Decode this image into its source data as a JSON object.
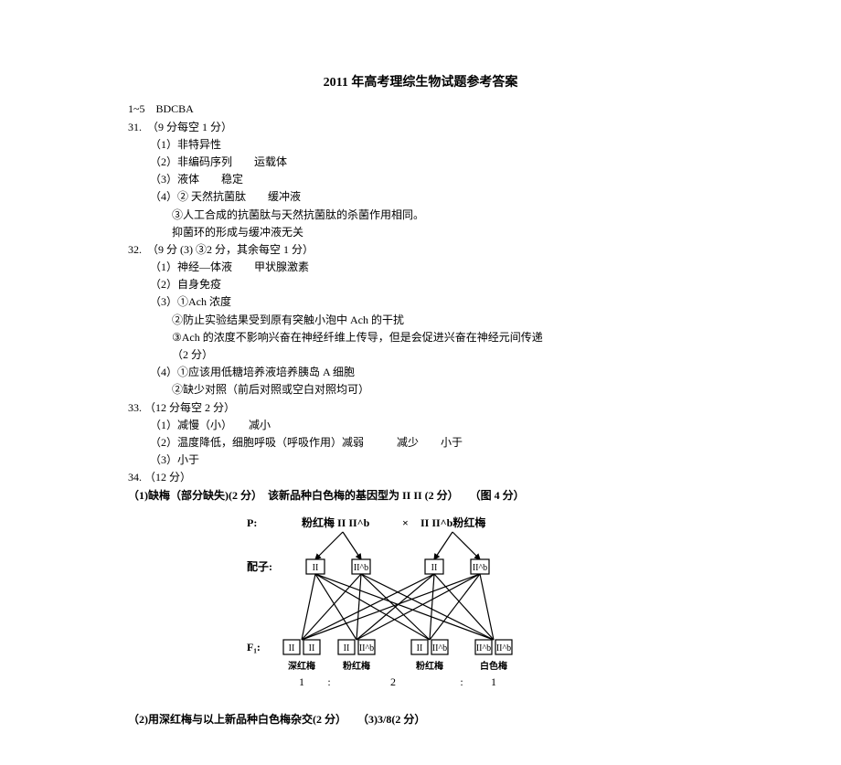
{
  "title": "2011 年高考理综生物试题参考答案",
  "answers_line": "1~5　BDCBA",
  "q31": {
    "head": "31.　（9 分每空 1 分）",
    "i1": "（1）非特异性",
    "i2": "（2）非编码序列　　运载体",
    "i3": "（3）液体　　稳定",
    "i4a": "（4）② 天然抗菌肽　　缓冲液",
    "i4b": "③人工合成的抗菌肽与天然抗菌肽的杀菌作用相同。",
    "i4c": "抑菌环的形成与缓冲液无关"
  },
  "q32": {
    "head": "32.　（9 分 (3) ③2 分，其余每空 1 分）",
    "i1": "（1）神经—体液　　甲状腺激素",
    "i2": "（2）自身免疫",
    "i3a": "（3）①Ach 浓度",
    "i3b": "②防止实验结果受到原有突触小泡中 Ach 的干扰",
    "i3c": "③Ach 的浓度不影响兴奋在神经纤维上传导，但是会促进兴奋在神经元间传递",
    "i3c_tail": "（2 分）",
    "i4a": "（4）①应该用低糖培养液培养胰岛 A 细胞",
    "i4b": "②缺少对照（前后对照或空白对照均可）"
  },
  "q33": {
    "head": "33. （12 分每空 2 分）",
    "i1": "（1）减慢（小）　　减小",
    "i2": "（2）温度降低，细胞呼吸（呼吸作用）减弱　　　减少　　小于",
    "i3": "（3）小于"
  },
  "q34": {
    "head": "34. （12 分）",
    "line1": "（1)缺梅（部分缺失)(2 分）　该新品种白色梅的基因型为 II II (2 分）　　（图 4 分）",
    "line2": "（2)用深红梅与以上新品种白色梅杂交(2 分）　　（3)3/8(2 分）"
  },
  "diagram": {
    "p_label": "P:",
    "p_left": "粉红梅 II II^b",
    "cross": "×",
    "p_right": "II II^b粉红梅",
    "gamete_label": "配子:",
    "f1_label": "F₁:",
    "f1_names": [
      "深红梅",
      "粉红梅",
      "粉红梅",
      "白色梅"
    ],
    "ratio_labels": [
      "1",
      ":",
      "2",
      ":",
      "1"
    ],
    "allele_labels": [
      "II",
      "II^b",
      "II",
      "II^b",
      "II",
      "II^b",
      "II",
      "II^b"
    ],
    "arrow_color": "#000",
    "box_fill": "#fff",
    "box_stroke": "#000",
    "line_width": 1.2,
    "label_fontsize": 12,
    "small_fontsize": 10
  }
}
